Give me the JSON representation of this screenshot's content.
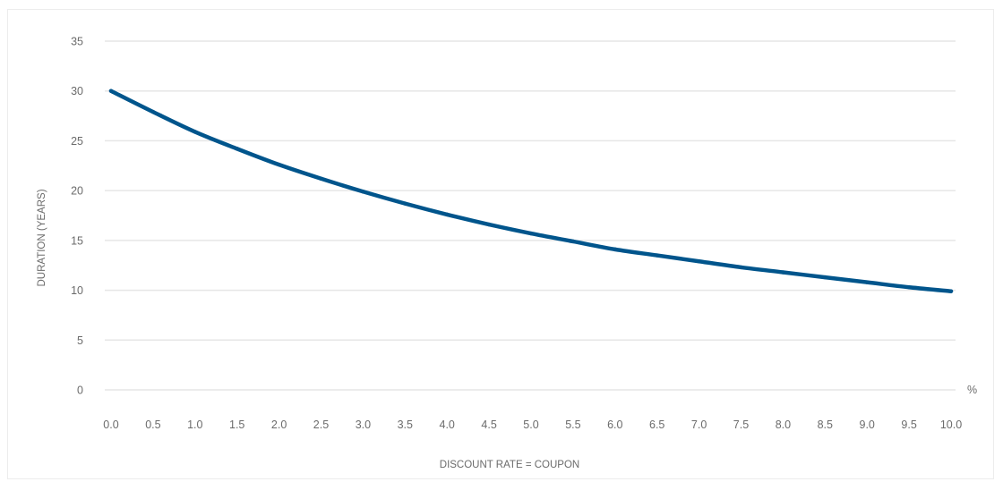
{
  "chart_data": {
    "type": "line",
    "title": "",
    "xlabel": "DISCOUNT RATE = COUPON",
    "ylabel": "DURATION (YEARS)",
    "x_unit_label": "%",
    "xlim": [
      0,
      10
    ],
    "ylim": [
      0,
      35
    ],
    "x_ticks": [
      "0.0",
      "0.5",
      "1.0",
      "1.5",
      "2.0",
      "2.5",
      "3.0",
      "3.5",
      "4.0",
      "4.5",
      "5.0",
      "5.5",
      "6.0",
      "6.5",
      "7.0",
      "7.5",
      "8.0",
      "8.5",
      "9.0",
      "9.5",
      "10.0"
    ],
    "y_ticks": [
      "0",
      "5",
      "10",
      "15",
      "20",
      "25",
      "30",
      "35"
    ],
    "grid": true,
    "legend": "none",
    "line_color": "#00558c",
    "grid_color": "#e6e6e6",
    "series": [
      {
        "x": [
          0.0,
          0.5,
          1.0,
          1.5,
          2.0,
          2.5,
          3.0,
          3.5,
          4.0,
          4.5,
          5.0,
          5.5,
          6.0,
          6.5,
          7.0,
          7.5,
          8.0,
          8.5,
          9.0,
          9.5,
          10.0
        ],
        "values": [
          30.0,
          27.9,
          25.9,
          24.2,
          22.6,
          21.2,
          19.9,
          18.7,
          17.6,
          16.6,
          15.7,
          14.9,
          14.1,
          13.5,
          12.9,
          12.3,
          11.8,
          11.3,
          10.8,
          10.3,
          9.9
        ]
      }
    ]
  }
}
